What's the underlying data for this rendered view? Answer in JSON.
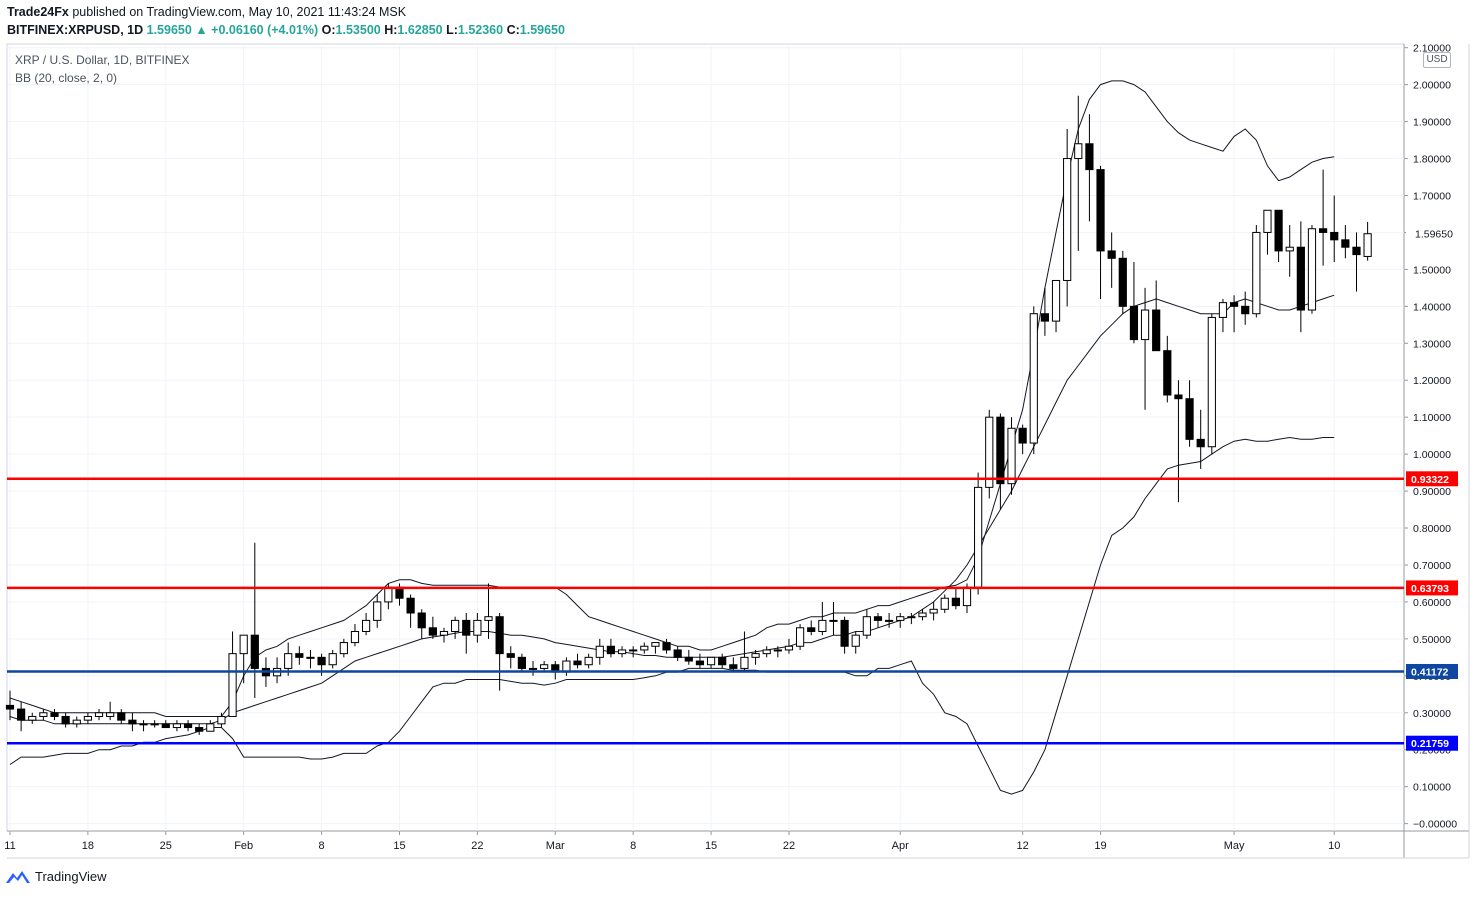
{
  "header": {
    "publisher": "Trade24Fx",
    "published_text": "published on TradingView.com, May 10, 2021 11:43:24 MSK",
    "symbol": "BITFINEX:XRPUSD, 1D",
    "last": "1.59650",
    "change": "▲ +0.06160 (+4.01%)",
    "o_label": "O:",
    "o": "1.53500",
    "h_label": "H:",
    "h": "1.62850",
    "l_label": "L:",
    "l": "1.52360",
    "c_label": "C:",
    "c": "1.59650"
  },
  "legend": {
    "title": "XRP / U.S. Dollar, 1D, BITFINEX",
    "indicator": "BB (20, close, 2, 0)"
  },
  "price_axis": {
    "currency": "USD"
  },
  "footer": {
    "brand": "TradingView"
  },
  "colors": {
    "up": "#ffffff",
    "down": "#000000",
    "red_line": "#ff0000",
    "blue_line": "#0000ff",
    "navy_line": "#0d47a1"
  },
  "chart_data": {
    "type": "candlestick",
    "y_range": [
      -0.02,
      2.11
    ],
    "y_ticks": [
      "0.00000",
      "0.10000",
      "0.20000",
      "0.30000",
      "0.40000",
      "0.50000",
      "0.60000",
      "0.70000",
      "0.80000",
      "0.90000",
      "1.00000",
      "1.10000",
      "1.20000",
      "1.30000",
      "1.40000",
      "1.50000",
      "1.60000",
      "1.70000",
      "1.80000",
      "1.90000",
      "2.00000",
      "2.10000"
    ],
    "x_ticks": [
      {
        "label": "11",
        "index": 0
      },
      {
        "label": "18",
        "index": 7
      },
      {
        "label": "25",
        "index": 14
      },
      {
        "label": "Feb",
        "index": 21
      },
      {
        "label": "8",
        "index": 28
      },
      {
        "label": "15",
        "index": 35
      },
      {
        "label": "22",
        "index": 42
      },
      {
        "label": "Mar",
        "index": 49
      },
      {
        "label": "8",
        "index": 56
      },
      {
        "label": "15",
        "index": 63
      },
      {
        "label": "22",
        "index": 70
      },
      {
        "label": "Apr",
        "index": 80
      },
      {
        "label": "12",
        "index": 91
      },
      {
        "label": "19",
        "index": 98
      },
      {
        "label": "May",
        "index": 110
      },
      {
        "label": "10",
        "index": 119
      }
    ],
    "horizontal_lines": [
      {
        "value": 0.93322,
        "label": "0.93322",
        "color": "#ff0000"
      },
      {
        "value": 0.63793,
        "label": "0.63793",
        "color": "#ff0000"
      },
      {
        "value": 0.41172,
        "label": "0.41172",
        "color": "#0d47a1"
      },
      {
        "value": 0.21759,
        "label": "0.21759",
        "color": "#0000ff"
      }
    ],
    "last_price": {
      "value": 1.5965,
      "label": "1.59650"
    },
    "ohlc": [
      [
        0.32,
        0.36,
        0.28,
        0.31
      ],
      [
        0.31,
        0.33,
        0.25,
        0.28
      ],
      [
        0.28,
        0.3,
        0.27,
        0.29
      ],
      [
        0.29,
        0.31,
        0.28,
        0.3
      ],
      [
        0.3,
        0.31,
        0.28,
        0.29
      ],
      [
        0.29,
        0.3,
        0.26,
        0.27
      ],
      [
        0.27,
        0.29,
        0.26,
        0.28
      ],
      [
        0.28,
        0.3,
        0.27,
        0.29
      ],
      [
        0.29,
        0.31,
        0.28,
        0.3
      ],
      [
        0.29,
        0.33,
        0.28,
        0.3
      ],
      [
        0.3,
        0.31,
        0.27,
        0.28
      ],
      [
        0.28,
        0.3,
        0.25,
        0.27
      ],
      [
        0.27,
        0.28,
        0.25,
        0.27
      ],
      [
        0.27,
        0.28,
        0.26,
        0.27
      ],
      [
        0.27,
        0.28,
        0.26,
        0.26
      ],
      [
        0.26,
        0.28,
        0.25,
        0.27
      ],
      [
        0.27,
        0.28,
        0.25,
        0.26
      ],
      [
        0.26,
        0.27,
        0.24,
        0.25
      ],
      [
        0.25,
        0.28,
        0.25,
        0.27
      ],
      [
        0.27,
        0.3,
        0.26,
        0.29
      ],
      [
        0.29,
        0.52,
        0.29,
        0.46
      ],
      [
        0.46,
        0.51,
        0.38,
        0.51
      ],
      [
        0.51,
        0.76,
        0.34,
        0.42
      ],
      [
        0.42,
        0.45,
        0.37,
        0.4
      ],
      [
        0.4,
        0.45,
        0.38,
        0.42
      ],
      [
        0.42,
        0.49,
        0.4,
        0.46
      ],
      [
        0.46,
        0.48,
        0.43,
        0.45
      ],
      [
        0.45,
        0.47,
        0.42,
        0.45
      ],
      [
        0.45,
        0.46,
        0.4,
        0.43
      ],
      [
        0.43,
        0.47,
        0.42,
        0.46
      ],
      [
        0.46,
        0.5,
        0.45,
        0.49
      ],
      [
        0.49,
        0.54,
        0.48,
        0.52
      ],
      [
        0.52,
        0.57,
        0.51,
        0.55
      ],
      [
        0.55,
        0.62,
        0.53,
        0.6
      ],
      [
        0.6,
        0.65,
        0.58,
        0.64
      ],
      [
        0.64,
        0.65,
        0.59,
        0.61
      ],
      [
        0.61,
        0.62,
        0.53,
        0.57
      ],
      [
        0.57,
        0.58,
        0.5,
        0.53
      ],
      [
        0.53,
        0.56,
        0.5,
        0.51
      ],
      [
        0.51,
        0.53,
        0.49,
        0.52
      ],
      [
        0.52,
        0.56,
        0.5,
        0.55
      ],
      [
        0.55,
        0.57,
        0.46,
        0.51
      ],
      [
        0.51,
        0.57,
        0.49,
        0.55
      ],
      [
        0.55,
        0.65,
        0.5,
        0.56
      ],
      [
        0.56,
        0.57,
        0.36,
        0.46
      ],
      [
        0.46,
        0.48,
        0.42,
        0.45
      ],
      [
        0.45,
        0.46,
        0.41,
        0.42
      ],
      [
        0.42,
        0.44,
        0.4,
        0.42
      ],
      [
        0.42,
        0.44,
        0.41,
        0.43
      ],
      [
        0.43,
        0.44,
        0.39,
        0.41
      ],
      [
        0.41,
        0.45,
        0.4,
        0.44
      ],
      [
        0.44,
        0.46,
        0.42,
        0.43
      ],
      [
        0.43,
        0.46,
        0.42,
        0.45
      ],
      [
        0.45,
        0.5,
        0.43,
        0.48
      ],
      [
        0.48,
        0.5,
        0.45,
        0.46
      ],
      [
        0.46,
        0.48,
        0.45,
        0.47
      ],
      [
        0.47,
        0.48,
        0.45,
        0.47
      ],
      [
        0.47,
        0.49,
        0.46,
        0.48
      ],
      [
        0.48,
        0.49,
        0.46,
        0.49
      ],
      [
        0.49,
        0.5,
        0.46,
        0.47
      ],
      [
        0.47,
        0.48,
        0.44,
        0.45
      ],
      [
        0.45,
        0.47,
        0.43,
        0.44
      ],
      [
        0.44,
        0.46,
        0.42,
        0.43
      ],
      [
        0.43,
        0.45,
        0.42,
        0.45
      ],
      [
        0.45,
        0.46,
        0.42,
        0.43
      ],
      [
        0.43,
        0.45,
        0.41,
        0.42
      ],
      [
        0.42,
        0.52,
        0.41,
        0.45
      ],
      [
        0.45,
        0.47,
        0.43,
        0.46
      ],
      [
        0.46,
        0.48,
        0.45,
        0.47
      ],
      [
        0.47,
        0.48,
        0.45,
        0.47
      ],
      [
        0.47,
        0.5,
        0.46,
        0.48
      ],
      [
        0.48,
        0.54,
        0.47,
        0.53
      ],
      [
        0.53,
        0.55,
        0.51,
        0.52
      ],
      [
        0.52,
        0.6,
        0.51,
        0.55
      ],
      [
        0.55,
        0.6,
        0.51,
        0.55
      ],
      [
        0.55,
        0.56,
        0.46,
        0.48
      ],
      [
        0.48,
        0.52,
        0.46,
        0.51
      ],
      [
        0.51,
        0.58,
        0.5,
        0.56
      ],
      [
        0.56,
        0.57,
        0.53,
        0.55
      ],
      [
        0.55,
        0.57,
        0.53,
        0.55
      ],
      [
        0.55,
        0.57,
        0.53,
        0.56
      ],
      [
        0.56,
        0.57,
        0.54,
        0.56
      ],
      [
        0.56,
        0.58,
        0.55,
        0.57
      ],
      [
        0.57,
        0.6,
        0.55,
        0.58
      ],
      [
        0.58,
        0.62,
        0.57,
        0.61
      ],
      [
        0.61,
        0.64,
        0.58,
        0.59
      ],
      [
        0.59,
        0.65,
        0.57,
        0.64
      ],
      [
        0.64,
        0.95,
        0.62,
        0.91
      ],
      [
        0.91,
        1.12,
        0.88,
        1.1
      ],
      [
        1.1,
        1.11,
        0.85,
        0.92
      ],
      [
        0.92,
        1.1,
        0.89,
        1.07
      ],
      [
        1.07,
        1.08,
        1.0,
        1.03
      ],
      [
        1.03,
        1.4,
        1.0,
        1.38
      ],
      [
        1.38,
        1.45,
        1.32,
        1.36
      ],
      [
        1.36,
        1.47,
        1.33,
        1.47
      ],
      [
        1.47,
        1.88,
        1.4,
        1.8
      ],
      [
        1.8,
        1.97,
        1.55,
        1.84
      ],
      [
        1.84,
        1.92,
        1.63,
        1.77
      ],
      [
        1.77,
        1.78,
        1.42,
        1.55
      ],
      [
        1.55,
        1.6,
        1.45,
        1.53
      ],
      [
        1.53,
        1.55,
        1.38,
        1.4
      ],
      [
        1.4,
        1.52,
        1.3,
        1.31
      ],
      [
        1.31,
        1.45,
        1.12,
        1.39
      ],
      [
        1.39,
        1.47,
        1.29,
        1.28
      ],
      [
        1.28,
        1.32,
        1.14,
        1.16
      ],
      [
        1.16,
        1.2,
        0.87,
        1.15
      ],
      [
        1.15,
        1.2,
        1.02,
        1.04
      ],
      [
        1.04,
        1.12,
        0.96,
        1.02
      ],
      [
        1.02,
        1.38,
        1.0,
        1.37
      ],
      [
        1.37,
        1.42,
        1.33,
        1.41
      ],
      [
        1.41,
        1.43,
        1.33,
        1.4
      ],
      [
        1.4,
        1.44,
        1.35,
        1.38
      ],
      [
        1.38,
        1.62,
        1.37,
        1.6
      ],
      [
        1.6,
        1.65,
        1.54,
        1.66
      ],
      [
        1.66,
        1.66,
        1.52,
        1.55
      ],
      [
        1.55,
        1.62,
        1.48,
        1.56
      ],
      [
        1.56,
        1.63,
        1.33,
        1.39
      ],
      [
        1.39,
        1.62,
        1.38,
        1.61
      ],
      [
        1.61,
        1.77,
        1.51,
        1.6
      ],
      [
        1.6,
        1.7,
        1.52,
        1.58
      ],
      [
        1.58,
        1.62,
        1.53,
        1.56
      ],
      [
        1.56,
        1.6,
        1.44,
        1.54
      ],
      [
        1.535,
        1.6285,
        1.5236,
        1.5965
      ]
    ],
    "bb_upper": [
      0.34,
      0.33,
      0.32,
      0.31,
      0.3,
      0.3,
      0.3,
      0.3,
      0.3,
      0.3,
      0.3,
      0.3,
      0.3,
      0.3,
      0.29,
      0.29,
      0.29,
      0.29,
      0.29,
      0.29,
      0.33,
      0.4,
      0.45,
      0.47,
      0.48,
      0.5,
      0.51,
      0.52,
      0.53,
      0.54,
      0.55,
      0.57,
      0.59,
      0.62,
      0.65,
      0.66,
      0.66,
      0.65,
      0.645,
      0.645,
      0.645,
      0.645,
      0.645,
      0.645,
      0.64,
      0.64,
      0.64,
      0.64,
      0.64,
      0.64,
      0.62,
      0.59,
      0.56,
      0.55,
      0.54,
      0.53,
      0.52,
      0.51,
      0.5,
      0.49,
      0.48,
      0.48,
      0.47,
      0.47,
      0.48,
      0.49,
      0.5,
      0.51,
      0.53,
      0.54,
      0.54,
      0.55,
      0.56,
      0.56,
      0.57,
      0.57,
      0.57,
      0.58,
      0.59,
      0.59,
      0.6,
      0.61,
      0.62,
      0.63,
      0.64,
      0.645,
      0.66,
      0.72,
      0.82,
      0.92,
      1.02,
      1.12,
      1.28,
      1.45,
      1.6,
      1.75,
      1.88,
      1.96,
      2.0,
      2.01,
      2.01,
      2.0,
      1.98,
      1.94,
      1.9,
      1.87,
      1.85,
      1.84,
      1.83,
      1.82,
      1.86,
      1.88,
      1.85,
      1.78,
      1.74,
      1.75,
      1.77,
      1.79,
      1.8,
      1.805
    ],
    "bb_mid": [
      0.29,
      0.28,
      0.28,
      0.28,
      0.27,
      0.27,
      0.27,
      0.27,
      0.27,
      0.27,
      0.27,
      0.27,
      0.27,
      0.27,
      0.27,
      0.27,
      0.27,
      0.27,
      0.27,
      0.28,
      0.3,
      0.31,
      0.32,
      0.33,
      0.34,
      0.35,
      0.36,
      0.37,
      0.38,
      0.4,
      0.42,
      0.44,
      0.45,
      0.46,
      0.47,
      0.48,
      0.49,
      0.5,
      0.505,
      0.51,
      0.515,
      0.52,
      0.52,
      0.52,
      0.515,
      0.51,
      0.51,
      0.505,
      0.5,
      0.49,
      0.485,
      0.48,
      0.475,
      0.47,
      0.465,
      0.465,
      0.46,
      0.455,
      0.455,
      0.45,
      0.45,
      0.45,
      0.45,
      0.45,
      0.45,
      0.455,
      0.46,
      0.465,
      0.47,
      0.475,
      0.48,
      0.49,
      0.49,
      0.5,
      0.51,
      0.51,
      0.52,
      0.52,
      0.53,
      0.54,
      0.55,
      0.56,
      0.58,
      0.6,
      0.63,
      0.66,
      0.7,
      0.75,
      0.8,
      0.85,
      0.9,
      0.96,
      1.02,
      1.08,
      1.14,
      1.2,
      1.24,
      1.28,
      1.32,
      1.35,
      1.38,
      1.4,
      1.41,
      1.42,
      1.41,
      1.4,
      1.39,
      1.38,
      1.38,
      1.38,
      1.41,
      1.42,
      1.41,
      1.4,
      1.39,
      1.39,
      1.4,
      1.41,
      1.42,
      1.43
    ],
    "bb_lower": [
      0.16,
      0.18,
      0.18,
      0.18,
      0.185,
      0.19,
      0.19,
      0.19,
      0.2,
      0.2,
      0.21,
      0.21,
      0.22,
      0.22,
      0.23,
      0.235,
      0.24,
      0.25,
      0.26,
      0.26,
      0.23,
      0.18,
      0.18,
      0.18,
      0.18,
      0.18,
      0.18,
      0.175,
      0.175,
      0.18,
      0.19,
      0.19,
      0.19,
      0.21,
      0.22,
      0.25,
      0.29,
      0.33,
      0.37,
      0.38,
      0.38,
      0.39,
      0.39,
      0.39,
      0.39,
      0.385,
      0.38,
      0.38,
      0.375,
      0.38,
      0.39,
      0.39,
      0.39,
      0.39,
      0.39,
      0.39,
      0.39,
      0.395,
      0.4,
      0.41,
      0.41,
      0.42,
      0.42,
      0.42,
      0.42,
      0.415,
      0.415,
      0.415,
      0.41,
      0.41,
      0.41,
      0.41,
      0.41,
      0.41,
      0.41,
      0.41,
      0.4,
      0.4,
      0.42,
      0.42,
      0.43,
      0.44,
      0.38,
      0.35,
      0.3,
      0.29,
      0.27,
      0.21,
      0.15,
      0.09,
      0.08,
      0.09,
      0.14,
      0.2,
      0.3,
      0.4,
      0.5,
      0.6,
      0.7,
      0.78,
      0.8,
      0.83,
      0.88,
      0.92,
      0.96,
      0.97,
      0.975,
      0.98,
      1.0,
      1.02,
      1.035,
      1.04,
      1.035,
      1.035,
      1.04,
      1.045,
      1.04,
      1.04,
      1.045,
      1.045
    ]
  }
}
